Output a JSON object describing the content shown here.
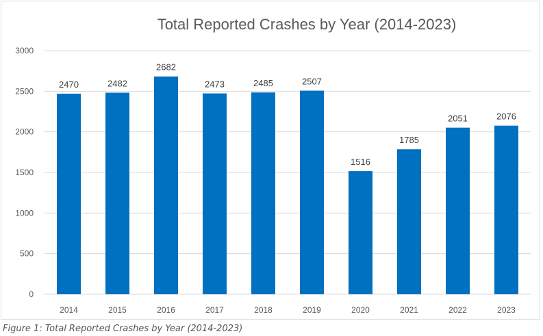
{
  "chart_data": {
    "type": "bar",
    "title": "Total Reported Crashes by Year (2014-2023)",
    "xlabel": "",
    "ylabel": "",
    "categories": [
      "2014",
      "2015",
      "2016",
      "2017",
      "2018",
      "2019",
      "2020",
      "2021",
      "2022",
      "2023"
    ],
    "values": [
      2470,
      2482,
      2682,
      2473,
      2485,
      2507,
      1516,
      1785,
      2051,
      2076
    ],
    "ylim": [
      0,
      3000
    ],
    "yticks": [
      0,
      500,
      1000,
      1500,
      2000,
      2500,
      3000
    ],
    "grid": true,
    "data_labels": true,
    "legend": "none",
    "bar_color": "#0070c0"
  },
  "caption": "Figure 1: Total Reported Crashes by Year (2014-2023)"
}
